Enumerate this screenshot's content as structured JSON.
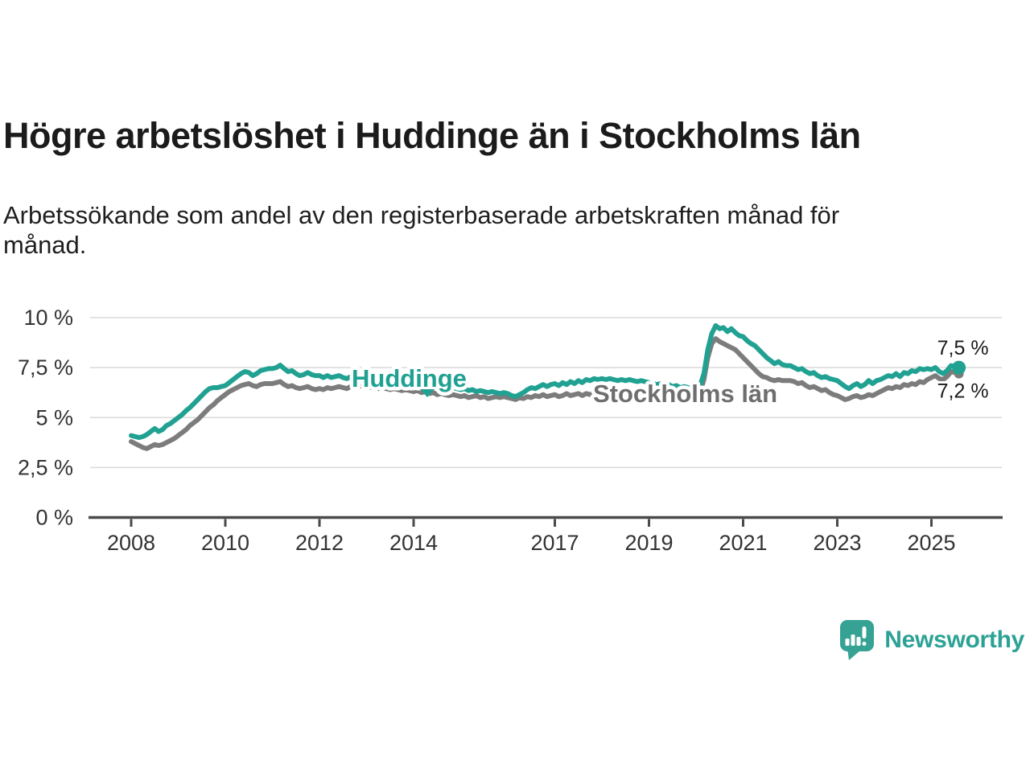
{
  "chart_data": {
    "type": "line",
    "title": "Högre arbetslöshet i Huddinge än i Stockholms län",
    "subtitle": "Arbetssökande som andel av den registerbaserade arbetskraften månad för månad.",
    "unit": "%",
    "x_start": "2008-01",
    "x_end": "2025-08",
    "x_step": "month",
    "ylim": [
      0,
      10
    ],
    "grid": "horizontal",
    "y_ticks": [
      {
        "value": 0,
        "label": "0 %"
      },
      {
        "value": 2.5,
        "label": "2,5 %"
      },
      {
        "value": 5,
        "label": "5 %"
      },
      {
        "value": 7.5,
        "label": "7,5 %"
      },
      {
        "value": 10,
        "label": "10 %"
      }
    ],
    "x_ticks": [
      {
        "year": 2008,
        "label": "2008"
      },
      {
        "year": 2010,
        "label": "2010"
      },
      {
        "year": 2012,
        "label": "2012"
      },
      {
        "year": 2014,
        "label": "2014"
      },
      {
        "year": 2017,
        "label": "2017"
      },
      {
        "year": 2019,
        "label": "2019"
      },
      {
        "year": 2021,
        "label": "2021"
      },
      {
        "year": 2023,
        "label": "2023"
      },
      {
        "year": 2025,
        "label": "2025"
      }
    ],
    "series": [
      {
        "name": "Huddinge",
        "color": "#21A192",
        "label_color": "#1FA192",
        "end_label": "7,5 %",
        "values": [
          4.1,
          4.05,
          4.0,
          4.05,
          4.15,
          4.3,
          4.45,
          4.3,
          4.4,
          4.6,
          4.7,
          4.85,
          5.0,
          5.15,
          5.35,
          5.5,
          5.7,
          5.9,
          6.1,
          6.3,
          6.45,
          6.5,
          6.5,
          6.55,
          6.6,
          6.75,
          6.9,
          7.05,
          7.2,
          7.3,
          7.25,
          7.1,
          7.2,
          7.35,
          7.4,
          7.45,
          7.45,
          7.5,
          7.62,
          7.45,
          7.3,
          7.35,
          7.2,
          7.1,
          7.15,
          7.25,
          7.15,
          7.1,
          7.1,
          7.0,
          7.1,
          7.0,
          7.05,
          7.1,
          7.0,
          6.95,
          7.05,
          7.0,
          6.95,
          7.0,
          6.95,
          6.9,
          6.95,
          6.85,
          6.9,
          6.85,
          6.8,
          6.85,
          6.8,
          6.75,
          6.8,
          6.75,
          6.7,
          6.75,
          6.65,
          6.6,
          6.65,
          6.55,
          6.5,
          6.55,
          6.5,
          6.45,
          6.5,
          6.45,
          6.4,
          6.45,
          6.35,
          6.4,
          6.3,
          6.35,
          6.3,
          6.25,
          6.3,
          6.25,
          6.2,
          6.25,
          6.2,
          6.1,
          6.05,
          6.15,
          6.25,
          6.4,
          6.5,
          6.45,
          6.55,
          6.65,
          6.55,
          6.65,
          6.7,
          6.6,
          6.75,
          6.65,
          6.8,
          6.7,
          6.85,
          6.75,
          6.9,
          6.85,
          6.95,
          6.9,
          6.95,
          6.9,
          6.95,
          6.9,
          6.85,
          6.9,
          6.85,
          6.9,
          6.85,
          6.8,
          6.85,
          6.8,
          6.75,
          6.7,
          6.65,
          6.7,
          6.6,
          6.65,
          6.55,
          6.6,
          6.5,
          6.55,
          6.5,
          6.45,
          6.5,
          6.6,
          7.2,
          8.4,
          9.2,
          9.6,
          9.45,
          9.5,
          9.3,
          9.45,
          9.25,
          9.1,
          9.05,
          8.85,
          8.7,
          8.6,
          8.4,
          8.2,
          8.0,
          7.85,
          7.7,
          7.8,
          7.65,
          7.6,
          7.6,
          7.5,
          7.4,
          7.45,
          7.3,
          7.2,
          7.25,
          7.1,
          7.0,
          7.05,
          6.95,
          6.9,
          6.85,
          6.7,
          6.55,
          6.45,
          6.6,
          6.7,
          6.55,
          6.65,
          6.85,
          6.7,
          6.85,
          6.9,
          7.0,
          7.1,
          7.05,
          7.2,
          7.05,
          7.25,
          7.2,
          7.35,
          7.3,
          7.45,
          7.4,
          7.45,
          7.4,
          7.5,
          7.3,
          7.2,
          7.35,
          7.6,
          7.55,
          7.5
        ]
      },
      {
        "name": "Stockholms län",
        "color": "#7C7C7C",
        "label_color": "#6E6E6E",
        "end_label": "7,2 %",
        "values": [
          3.8,
          3.7,
          3.6,
          3.5,
          3.45,
          3.55,
          3.65,
          3.6,
          3.65,
          3.75,
          3.85,
          3.95,
          4.1,
          4.25,
          4.4,
          4.6,
          4.75,
          4.9,
          5.1,
          5.3,
          5.5,
          5.65,
          5.85,
          6.0,
          6.15,
          6.3,
          6.4,
          6.5,
          6.6,
          6.65,
          6.7,
          6.6,
          6.55,
          6.65,
          6.7,
          6.7,
          6.7,
          6.75,
          6.8,
          6.65,
          6.55,
          6.6,
          6.5,
          6.45,
          6.5,
          6.55,
          6.45,
          6.4,
          6.45,
          6.4,
          6.5,
          6.45,
          6.5,
          6.55,
          6.5,
          6.45,
          6.55,
          6.5,
          6.55,
          6.6,
          6.55,
          6.5,
          6.55,
          6.45,
          6.5,
          6.45,
          6.4,
          6.45,
          6.4,
          6.35,
          6.4,
          6.35,
          6.3,
          6.35,
          6.25,
          6.3,
          6.2,
          6.25,
          6.15,
          6.2,
          6.15,
          6.1,
          6.15,
          6.1,
          6.05,
          6.1,
          6.0,
          6.05,
          6.1,
          6.0,
          6.05,
          5.95,
          6.0,
          6.05,
          6.0,
          6.05,
          6.0,
          5.95,
          5.9,
          6.0,
          5.95,
          6.05,
          6.0,
          6.1,
          6.05,
          6.15,
          6.05,
          6.1,
          6.15,
          6.05,
          6.1,
          6.2,
          6.1,
          6.15,
          6.2,
          6.1,
          6.2,
          6.15,
          6.2,
          6.15,
          6.2,
          6.15,
          6.2,
          6.15,
          6.1,
          6.15,
          6.1,
          6.15,
          6.1,
          6.05,
          6.1,
          6.05,
          6.1,
          6.05,
          6.0,
          6.05,
          6.0,
          6.05,
          6.0,
          6.05,
          6.0,
          6.05,
          6.1,
          6.1,
          6.15,
          6.25,
          6.9,
          8.0,
          8.7,
          8.95,
          8.8,
          8.7,
          8.6,
          8.5,
          8.4,
          8.2,
          8.0,
          7.8,
          7.6,
          7.4,
          7.2,
          7.05,
          7.0,
          6.9,
          6.85,
          6.9,
          6.85,
          6.85,
          6.85,
          6.8,
          6.7,
          6.75,
          6.6,
          6.5,
          6.55,
          6.45,
          6.35,
          6.4,
          6.25,
          6.15,
          6.1,
          6.0,
          5.9,
          5.95,
          6.05,
          6.1,
          6.0,
          6.05,
          6.15,
          6.1,
          6.2,
          6.3,
          6.4,
          6.5,
          6.45,
          6.55,
          6.5,
          6.65,
          6.6,
          6.7,
          6.65,
          6.8,
          6.75,
          6.9,
          7.0,
          7.1,
          6.95,
          6.9,
          7.05,
          7.3,
          7.25,
          7.2
        ]
      }
    ]
  },
  "branding": {
    "name": "Newsworthy",
    "color": "#2CA295"
  }
}
